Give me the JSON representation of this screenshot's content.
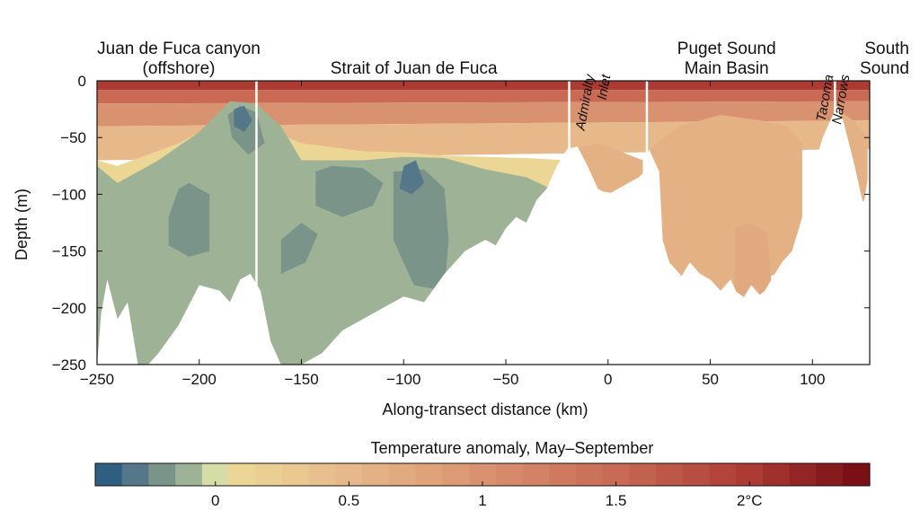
{
  "chart_data": {
    "type": "contour",
    "xlabel": "Along-transect distance (km)",
    "ylabel": "Depth (m)",
    "xlim": [
      -250,
      128
    ],
    "ylim": [
      -250,
      0
    ],
    "x_ticks": [
      -250,
      -200,
      -150,
      -100,
      -50,
      0,
      50,
      100
    ],
    "y_ticks": [
      0,
      -50,
      -100,
      -150,
      -200,
      -250
    ],
    "region_labels": [
      {
        "lines": [
          "Juan de Fuca canyon",
          "(offshore)"
        ],
        "x": -210,
        "style": "normal"
      },
      {
        "lines": [
          "Strait of Juan de Fuca"
        ],
        "x": -95,
        "style": "normal"
      },
      {
        "lines": [
          "Admiralty",
          "Inlet"
        ],
        "x": -5,
        "style": "italic"
      },
      {
        "lines": [
          "Puget Sound",
          "Main Basin"
        ],
        "x": 58,
        "style": "normal"
      },
      {
        "lines": [
          "Tacoma",
          "Narrows"
        ],
        "x": 112,
        "style": "italic"
      },
      {
        "lines": [
          "South",
          "Sound"
        ],
        "x": 133,
        "style": "normal"
      }
    ],
    "section_dividers_x": [
      -172,
      -19,
      19,
      111
    ],
    "anomaly_fields": [
      {
        "level": 2.0,
        "polygon": [
          [
            -250,
            0
          ],
          [
            128,
            0
          ],
          [
            128,
            -8
          ],
          [
            -250,
            -8
          ]
        ]
      },
      {
        "level": 1.5,
        "polygon": [
          [
            -250,
            -8
          ],
          [
            128,
            -8
          ],
          [
            128,
            -18
          ],
          [
            -250,
            -20
          ]
        ]
      },
      {
        "level": 1.0,
        "polygon": [
          [
            -250,
            -20
          ],
          [
            128,
            -18
          ],
          [
            128,
            -35
          ],
          [
            -250,
            -40
          ]
        ]
      },
      {
        "level": 0.5,
        "polygon": [
          [
            -250,
            -40
          ],
          [
            128,
            -35
          ],
          [
            128,
            -60
          ],
          [
            -250,
            -70
          ]
        ]
      },
      {
        "level": 0.1,
        "polygon": [
          [
            -250,
            -70
          ],
          [
            -240,
            -75
          ],
          [
            -210,
            -55
          ],
          [
            -185,
            -30
          ],
          [
            -170,
            -40
          ],
          [
            -150,
            -55
          ],
          [
            -120,
            -62
          ],
          [
            -100,
            -63
          ],
          [
            -80,
            -66
          ],
          [
            -60,
            -67
          ],
          [
            -40,
            -68
          ],
          [
            -20,
            -70
          ],
          [
            -20,
            -250
          ],
          [
            -250,
            -250
          ]
        ]
      },
      {
        "level": -0.1,
        "polygon": [
          [
            -250,
            -75
          ],
          [
            -240,
            -90
          ],
          [
            -220,
            -70
          ],
          [
            -200,
            -45
          ],
          [
            -185,
            -18
          ],
          [
            -172,
            -20
          ],
          [
            -160,
            -40
          ],
          [
            -150,
            -70
          ],
          [
            -120,
            -70
          ],
          [
            -100,
            -67
          ],
          [
            -80,
            -68
          ],
          [
            -60,
            -78
          ],
          [
            -40,
            -85
          ],
          [
            -28,
            -95
          ],
          [
            -28,
            -250
          ],
          [
            -250,
            -250
          ]
        ]
      },
      {
        "level": -0.2,
        "polygon": [
          [
            -215,
            -120
          ],
          [
            -210,
            -95
          ],
          [
            -205,
            -90
          ],
          [
            -195,
            -100
          ],
          [
            -195,
            -150
          ],
          [
            -205,
            -155
          ],
          [
            -215,
            -145
          ]
        ]
      },
      {
        "level": -0.2,
        "polygon": [
          [
            -186,
            -30
          ],
          [
            -180,
            -22
          ],
          [
            -172,
            -28
          ],
          [
            -168,
            -55
          ],
          [
            -176,
            -65
          ],
          [
            -184,
            -50
          ]
        ]
      },
      {
        "level": -0.2,
        "polygon": [
          [
            -143,
            -80
          ],
          [
            -135,
            -75
          ],
          [
            -120,
            -77
          ],
          [
            -110,
            -90
          ],
          [
            -115,
            -110
          ],
          [
            -130,
            -120
          ],
          [
            -143,
            -110
          ]
        ]
      },
      {
        "level": -0.2,
        "polygon": [
          [
            -105,
            -80
          ],
          [
            -90,
            -78
          ],
          [
            -80,
            -95
          ],
          [
            -78,
            -140
          ],
          [
            -80,
            -185
          ],
          [
            -95,
            -180
          ],
          [
            -105,
            -140
          ]
        ]
      },
      {
        "level": -0.2,
        "polygon": [
          [
            -160,
            -140
          ],
          [
            -150,
            -125
          ],
          [
            -142,
            -135
          ],
          [
            -148,
            -160
          ],
          [
            -160,
            -170
          ]
        ]
      },
      {
        "level": -0.3,
        "polygon": [
          [
            -183,
            -25
          ],
          [
            -178,
            -22
          ],
          [
            -174,
            -35
          ],
          [
            -178,
            -45
          ],
          [
            -183,
            -40
          ]
        ]
      },
      {
        "level": -0.3,
        "polygon": [
          [
            -100,
            -75
          ],
          [
            -94,
            -70
          ],
          [
            -90,
            -90
          ],
          [
            -96,
            -100
          ],
          [
            -102,
            -95
          ]
        ]
      },
      {
        "level": 0.6,
        "polygon": [
          [
            -17,
            -60
          ],
          [
            -5,
            -55
          ],
          [
            10,
            -65
          ],
          [
            17,
            -70
          ],
          [
            17,
            -90
          ],
          [
            5,
            -100
          ],
          [
            -10,
            -95
          ],
          [
            -17,
            -85
          ]
        ]
      },
      {
        "level": 0.6,
        "polygon": [
          [
            20,
            -60
          ],
          [
            35,
            -40
          ],
          [
            55,
            -30
          ],
          [
            75,
            -35
          ],
          [
            88,
            -40
          ],
          [
            95,
            -55
          ],
          [
            95,
            -160
          ],
          [
            88,
            -165
          ],
          [
            70,
            -180
          ],
          [
            55,
            -185
          ],
          [
            40,
            -180
          ],
          [
            30,
            -160
          ],
          [
            20,
            -100
          ]
        ]
      },
      {
        "level": 0.7,
        "polygon": [
          [
            62,
            -130
          ],
          [
            70,
            -125
          ],
          [
            78,
            -135
          ],
          [
            80,
            -180
          ],
          [
            70,
            -195
          ],
          [
            62,
            -185
          ]
        ]
      },
      {
        "level": 0.6,
        "polygon": [
          [
            112,
            -25
          ],
          [
            120,
            -35
          ],
          [
            127,
            -50
          ],
          [
            127,
            -100
          ],
          [
            120,
            -120
          ],
          [
            115,
            -80
          ],
          [
            112,
            -40
          ]
        ]
      }
    ],
    "bathymetry": [
      [
        -250,
        -250
      ],
      [
        -248,
        -205
      ],
      [
        -245,
        -175
      ],
      [
        -240,
        -210
      ],
      [
        -235,
        -195
      ],
      [
        -230,
        -250
      ],
      [
        -225,
        -250
      ],
      [
        -220,
        -240
      ],
      [
        -210,
        -215
      ],
      [
        -200,
        -180
      ],
      [
        -190,
        -185
      ],
      [
        -185,
        -195
      ],
      [
        -180,
        -175
      ],
      [
        -175,
        -170
      ],
      [
        -170,
        -185
      ],
      [
        -165,
        -230
      ],
      [
        -160,
        -250
      ],
      [
        -150,
        -250
      ],
      [
        -140,
        -240
      ],
      [
        -130,
        -220
      ],
      [
        -120,
        -210
      ],
      [
        -110,
        -200
      ],
      [
        -100,
        -190
      ],
      [
        -90,
        -195
      ],
      [
        -80,
        -170
      ],
      [
        -70,
        -150
      ],
      [
        -60,
        -140
      ],
      [
        -55,
        -145
      ],
      [
        -50,
        -130
      ],
      [
        -45,
        -120
      ],
      [
        -40,
        -125
      ],
      [
        -35,
        -105
      ],
      [
        -30,
        -95
      ],
      [
        -25,
        -75
      ],
      [
        -20,
        -60
      ],
      [
        -15,
        -58
      ],
      [
        -10,
        -75
      ],
      [
        -5,
        -95
      ],
      [
        0,
        -100
      ],
      [
        5,
        -95
      ],
      [
        10,
        -90
      ],
      [
        15,
        -85
      ],
      [
        19,
        -78
      ],
      [
        20,
        -60
      ],
      [
        25,
        -80
      ],
      [
        28,
        -185
      ],
      [
        32,
        -170
      ],
      [
        35,
        -175
      ],
      [
        40,
        -160
      ],
      [
        45,
        -170
      ],
      [
        50,
        -175
      ],
      [
        55,
        -185
      ],
      [
        60,
        -175
      ],
      [
        65,
        -195
      ],
      [
        70,
        -180
      ],
      [
        75,
        -190
      ],
      [
        80,
        -175
      ],
      [
        85,
        -160
      ],
      [
        90,
        -150
      ],
      [
        95,
        -120
      ],
      [
        100,
        -80
      ],
      [
        105,
        -50
      ],
      [
        110,
        -30
      ],
      [
        112,
        -22
      ],
      [
        115,
        -35
      ],
      [
        120,
        -70
      ],
      [
        125,
        -110
      ],
      [
        128,
        -75
      ],
      [
        128,
        -250
      ]
    ],
    "colorbar": {
      "title": "Temperature anomaly, May–September",
      "range": [
        -0.45,
        2.45
      ],
      "tick_values": [
        0,
        0.5,
        1,
        1.5,
        2
      ],
      "tick_labels": [
        "0",
        "0.5",
        "1",
        "1.5",
        "2°C"
      ],
      "bin_width": 0.1,
      "colors": [
        {
          "level": -0.4,
          "color": "#2f5f80"
        },
        {
          "level": -0.3,
          "color": "#54778a"
        },
        {
          "level": -0.2,
          "color": "#7a9489"
        },
        {
          "level": -0.1,
          "color": "#9eb296"
        },
        {
          "level": 0.0,
          "color": "#d7dca7"
        },
        {
          "level": 0.1,
          "color": "#ecd695"
        },
        {
          "level": 0.5,
          "color": "#e7b98a"
        },
        {
          "level": 1.0,
          "color": "#d99270"
        },
        {
          "level": 1.5,
          "color": "#c86a54"
        },
        {
          "level": 2.0,
          "color": "#ac3b34"
        },
        {
          "level": 2.4,
          "color": "#7a1016"
        }
      ]
    }
  }
}
